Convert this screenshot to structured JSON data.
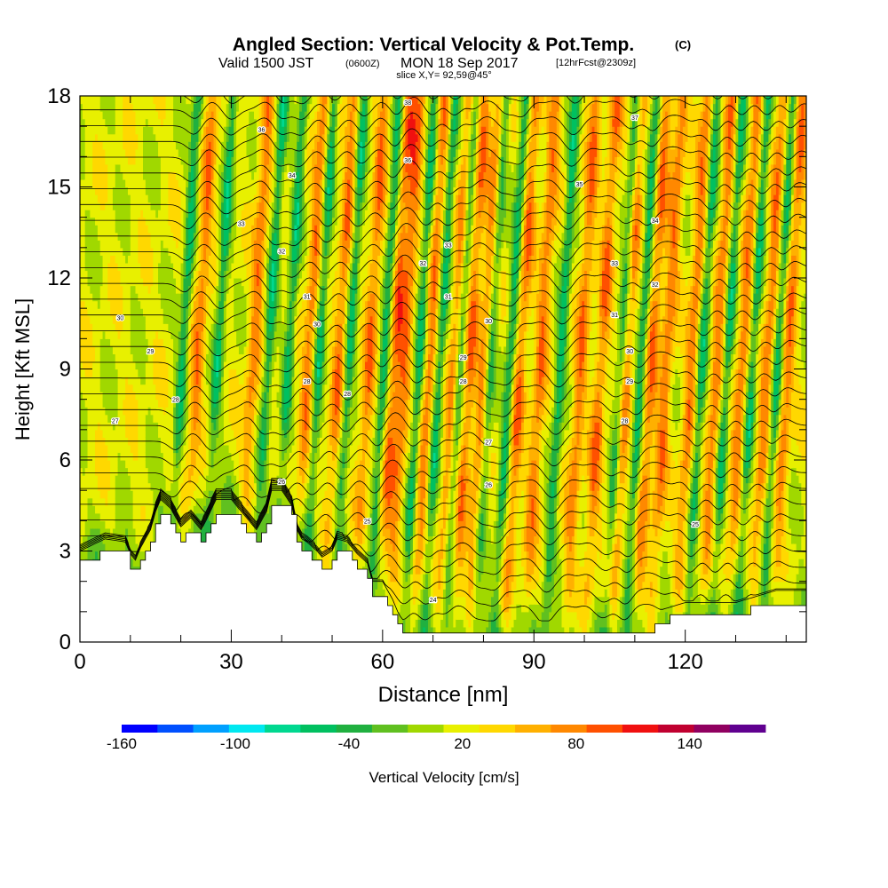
{
  "chart_data": {
    "type": "heatmap",
    "title_main": "Angled Section: Vertical Velocity & Pot.Temp.",
    "title_main_unit": "(C)",
    "subtitle_line1_a": "Valid 1500 JST",
    "subtitle_line1_b": "(0600Z)",
    "subtitle_line1_c": "MON 18 Sep 2017",
    "subtitle_line1_d": "[12hrFcst@2309z]",
    "subtitle_line2": "slice X,Y= 92,59@45°",
    "xlabel": "Distance [nm]",
    "ylabel": "Height [Kft MSL]",
    "xlim": [
      0,
      144
    ],
    "ylim": [
      0,
      18
    ],
    "x_ticks": [
      0,
      30,
      60,
      90,
      120
    ],
    "y_ticks": [
      0,
      3,
      6,
      9,
      12,
      15,
      18
    ],
    "colorbar": {
      "label": "Vertical Velocity [cm/s]",
      "tick_labels": [
        "-160",
        "-100",
        "-40",
        "20",
        "80",
        "140"
      ],
      "tick_values": [
        -160,
        -100,
        -40,
        20,
        80,
        140
      ],
      "range": [
        -160,
        180
      ],
      "colors": [
        "#0000ff",
        "#0050ff",
        "#00a0ff",
        "#00e8f0",
        "#00d890",
        "#00c060",
        "#20b040",
        "#60c020",
        "#a0d800",
        "#e8f000",
        "#ffd800",
        "#ffb000",
        "#ff8800",
        "#ff5000",
        "#f01010",
        "#c00030",
        "#900060",
        "#600090"
      ]
    },
    "wave_updrafts_x_nm": [
      23,
      34,
      45,
      51,
      57,
      62,
      64,
      69,
      74,
      77,
      80,
      87,
      91,
      99,
      103,
      108,
      113,
      116,
      121,
      126,
      131,
      136,
      140
    ],
    "wave_downdrafts_x_nm": [
      20,
      27,
      37,
      41,
      47,
      53,
      60,
      67,
      71,
      75,
      81,
      85,
      95,
      107,
      111,
      123,
      128,
      133,
      138
    ],
    "terrain_kft": {
      "x": [
        0,
        5,
        9,
        10,
        11,
        12,
        13,
        14,
        15,
        16,
        18,
        20,
        22,
        24,
        25,
        27,
        30,
        33,
        35,
        37,
        38,
        40,
        42,
        43,
        44,
        45,
        47,
        48,
        50,
        51,
        53,
        55,
        57,
        58,
        60,
        61,
        62,
        63,
        64,
        67,
        70,
        100,
        113,
        114,
        120,
        130,
        138,
        144
      ],
      "y": [
        2.6,
        3.0,
        2.9,
        2.5,
        2.3,
        2.7,
        3.0,
        3.3,
        3.9,
        4.3,
        4.0,
        3.4,
        3.7,
        3.3,
        3.6,
        4.3,
        4.3,
        3.7,
        3.3,
        3.9,
        4.6,
        4.6,
        4.1,
        3.3,
        3.0,
        2.9,
        2.6,
        2.4,
        2.6,
        3.0,
        2.9,
        2.5,
        2.2,
        1.6,
        1.6,
        1.3,
        1.0,
        0.6,
        0.3,
        0.3,
        0.3,
        0.3,
        0.3,
        0.6,
        0.9,
        0.9,
        1.3,
        1.3
      ]
    },
    "contour_labels": [
      {
        "x": 36,
        "y": 16.9,
        "text": "36"
      },
      {
        "x": 65,
        "y": 17.8,
        "text": "38"
      },
      {
        "x": 110,
        "y": 17.3,
        "text": "37"
      },
      {
        "x": 42,
        "y": 15.4,
        "text": "34"
      },
      {
        "x": 65,
        "y": 15.9,
        "text": "36"
      },
      {
        "x": 99,
        "y": 15.1,
        "text": "35"
      },
      {
        "x": 32,
        "y": 13.8,
        "text": "33"
      },
      {
        "x": 114,
        "y": 13.9,
        "text": "34"
      },
      {
        "x": 73,
        "y": 13.1,
        "text": "33"
      },
      {
        "x": 40,
        "y": 12.9,
        "text": "32"
      },
      {
        "x": 68,
        "y": 12.5,
        "text": "32"
      },
      {
        "x": 106,
        "y": 12.5,
        "text": "33"
      },
      {
        "x": 45,
        "y": 11.4,
        "text": "31"
      },
      {
        "x": 73,
        "y": 11.4,
        "text": "31"
      },
      {
        "x": 114,
        "y": 11.8,
        "text": "32"
      },
      {
        "x": 8,
        "y": 10.7,
        "text": "30"
      },
      {
        "x": 47,
        "y": 10.5,
        "text": "30"
      },
      {
        "x": 81,
        "y": 10.6,
        "text": "30"
      },
      {
        "x": 106,
        "y": 10.8,
        "text": "31"
      },
      {
        "x": 14,
        "y": 9.6,
        "text": "29"
      },
      {
        "x": 76,
        "y": 9.4,
        "text": "29"
      },
      {
        "x": 109,
        "y": 9.6,
        "text": "30"
      },
      {
        "x": 45,
        "y": 8.6,
        "text": "28"
      },
      {
        "x": 53,
        "y": 8.2,
        "text": "28"
      },
      {
        "x": 76,
        "y": 8.6,
        "text": "28"
      },
      {
        "x": 109,
        "y": 8.6,
        "text": "29"
      },
      {
        "x": 19,
        "y": 8.0,
        "text": "28"
      },
      {
        "x": 7,
        "y": 7.3,
        "text": "27"
      },
      {
        "x": 108,
        "y": 7.3,
        "text": "28"
      },
      {
        "x": 81,
        "y": 6.6,
        "text": "27"
      },
      {
        "x": 40,
        "y": 5.3,
        "text": "26"
      },
      {
        "x": 81,
        "y": 5.2,
        "text": "26"
      },
      {
        "x": 57,
        "y": 4.0,
        "text": "25"
      },
      {
        "x": 122,
        "y": 3.9,
        "text": "25"
      },
      {
        "x": 70,
        "y": 1.4,
        "text": "24"
      }
    ]
  }
}
